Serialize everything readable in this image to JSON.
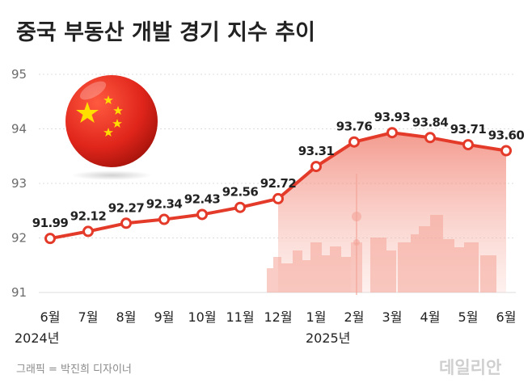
{
  "chart_data": {
    "type": "line",
    "title": "중국 부동산 개발 경기 지수 추이",
    "categories": [
      "6월",
      "7월",
      "8월",
      "9월",
      "10월",
      "11월",
      "12월",
      "1월",
      "2월",
      "3월",
      "4월",
      "5월",
      "6월"
    ],
    "values": [
      91.99,
      92.12,
      92.27,
      92.34,
      92.43,
      92.56,
      92.72,
      93.31,
      93.76,
      93.93,
      93.84,
      93.71,
      93.6
    ],
    "data_labels": [
      "91.99",
      "92.12",
      "92.27",
      "92.34",
      "92.43",
      "92.56",
      "92.72",
      "93.31",
      "93.76",
      "93.93",
      "93.84",
      "93.71",
      "93.60"
    ],
    "yticks": [
      "95",
      "94",
      "93",
      "92",
      "91"
    ],
    "ylim": [
      91,
      95
    ],
    "year_labels": [
      "2024년",
      "2025년"
    ],
    "grid": true,
    "line_color": "#e43a2a",
    "marker_fill": "#ffffff"
  },
  "credit": "그래픽 = 박진희 디자이너",
  "watermark": "데일리안",
  "colors": {
    "flag_red": "#e0251b",
    "flag_star": "#ffde00",
    "area": "#f28a7c"
  }
}
